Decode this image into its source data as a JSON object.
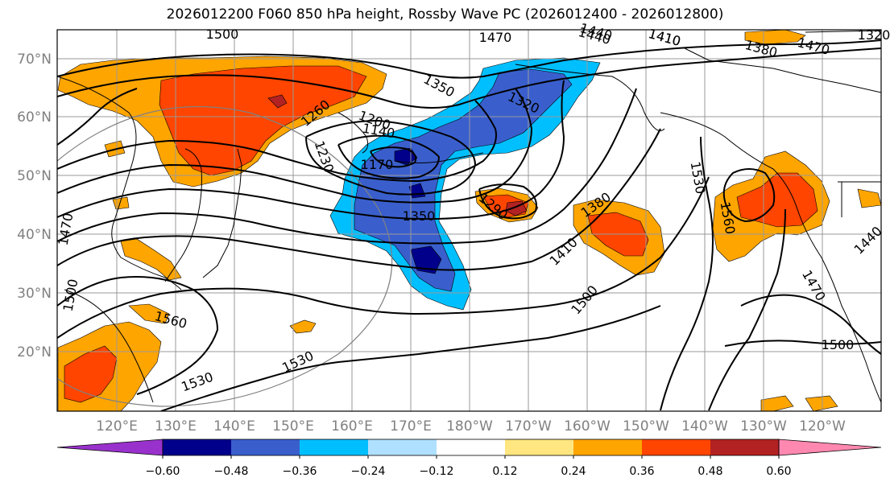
{
  "title": "2026012200 F060 850 hPa height, Rossby Wave PC (2026012400 - 2026012800)",
  "colors": {
    "pos_weak": "#FFE680",
    "pos_mid": "#FFA500",
    "pos_strong": "#FF4500",
    "pos_very_strong": "#B22222",
    "pos_extreme": "#FF88B0",
    "neg_weak": "#B0E0FF",
    "neg_mid": "#00BFFF",
    "neg_strong": "#3A5FCD",
    "neg_very_strong": "#00008B",
    "neg_extreme": "#9932CC",
    "grid": "#999999",
    "coast": "#000000",
    "contour": "#000000"
  },
  "lat_labels": [
    "70°N",
    "60°N",
    "50°N",
    "40°N",
    "30°N",
    "20°N"
  ],
  "lon_labels": [
    "120°E",
    "130°E",
    "140°E",
    "150°E",
    "160°E",
    "170°E",
    "180°W",
    "170°W",
    "160°W",
    "150°W",
    "140°W",
    "130°W",
    "120°W"
  ],
  "contour_labels": [
    "1500",
    "1470",
    "1440",
    "1410",
    "1380",
    "1350",
    "1320",
    "1260",
    "1200",
    "1140",
    "1230",
    "1170",
    "1350",
    "1290",
    "1380",
    "1410",
    "1500",
    "1530",
    "1560",
    "1470",
    "1500",
    "1530",
    "1530",
    "1560",
    "1500",
    "1470",
    "1440",
    "1440",
    "1410",
    "1470",
    "1320"
  ],
  "colorbar": {
    "ticks": [
      "−0.60",
      "−0.48",
      "−0.36",
      "−0.24",
      "−0.12",
      "0.12",
      "0.24",
      "0.36",
      "0.48",
      "0.60"
    ],
    "bins": [
      "#9932CC",
      "#00008B",
      "#3A5FCD",
      "#00BFFF",
      "#B0E0FF",
      "#FFFFFF",
      "#FFE680",
      "#FFA500",
      "#FF4500",
      "#B22222",
      "#FF88B0"
    ]
  }
}
